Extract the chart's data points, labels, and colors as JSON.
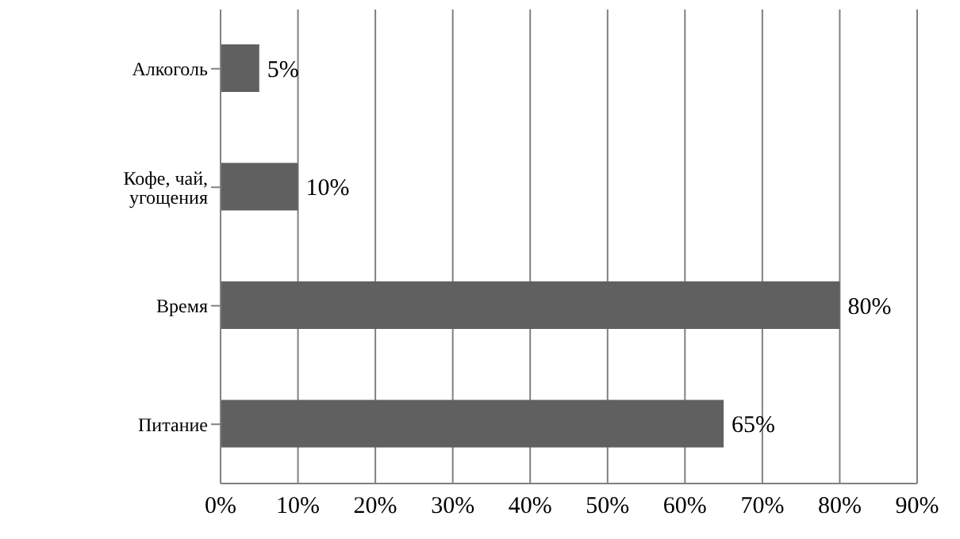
{
  "chart_data": {
    "type": "bar",
    "orientation": "horizontal",
    "categories": [
      "Алкоголь",
      "Кофе, чай, угощения",
      "Время",
      "Питание"
    ],
    "values": [
      5,
      10,
      80,
      65
    ],
    "value_labels": [
      "5%",
      "10%",
      "80%",
      "65%"
    ],
    "color": "#606060",
    "xlim": [
      0,
      90
    ],
    "xticks": [
      {
        "value": 0,
        "label": "0%"
      },
      {
        "value": 10,
        "label": "10%"
      },
      {
        "value": 20,
        "label": "20%"
      },
      {
        "value": 30,
        "label": "30%"
      },
      {
        "value": 40,
        "label": "40%"
      },
      {
        "value": 50,
        "label": "50%"
      },
      {
        "value": 60,
        "label": "60%"
      },
      {
        "value": 70,
        "label": "70%"
      },
      {
        "value": 80,
        "label": "80%"
      },
      {
        "value": 90,
        "label": "90%"
      }
    ],
    "grid": "x",
    "legend": false
  }
}
